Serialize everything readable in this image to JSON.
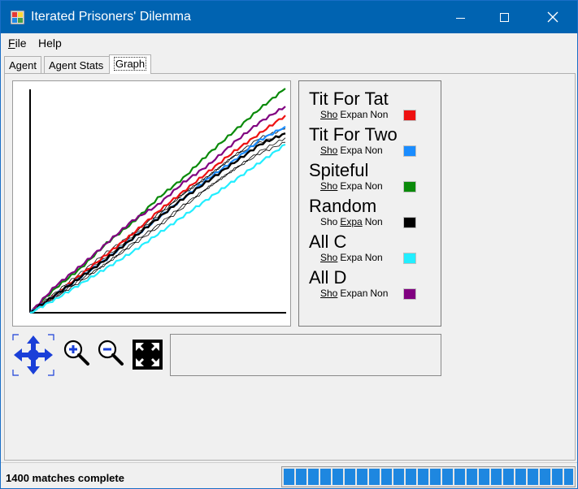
{
  "window": {
    "title": "Iterated Prisoners' Dilemma",
    "controls": {
      "minimize": "—",
      "maximize": "☐",
      "close": "✕"
    }
  },
  "menu": {
    "file_first": "F",
    "file_rest": "ile",
    "help": "Help"
  },
  "tabs": [
    {
      "label": "Agent"
    },
    {
      "label": "Agent Stats"
    },
    {
      "label": "Graph",
      "selected": true
    }
  ],
  "legend": [
    {
      "name": "Tit For Tat",
      "show": "Sho",
      "expand": "Expan",
      "none": "Non",
      "color": "#ee1111"
    },
    {
      "name": "Tit For Two",
      "show": "Sho",
      "expand": "Expa",
      "none": "Non",
      "color": "#1a8cff"
    },
    {
      "name": "Spiteful",
      "show": "Sho",
      "expand": "Expa",
      "none": "Non",
      "color": "#0a8a0a"
    },
    {
      "name": "Random",
      "show": "Sho",
      "expand": "Expa",
      "none": "Non",
      "color": "#000000"
    },
    {
      "name": "All C",
      "show": "Sho",
      "expand": "Expa",
      "none": "Non",
      "color": "#22eeff"
    },
    {
      "name": "All D",
      "show": "Sho",
      "expand": "Expan",
      "none": "Non",
      "color": "#800080"
    }
  ],
  "toolbar": {
    "pan_icon": "pan-arrows-icon",
    "zoom_in_icon": "zoom-in-icon",
    "zoom_out_icon": "zoom-out-icon",
    "fit_icon": "fit-to-view-icon"
  },
  "status": {
    "text": "1400 matches complete",
    "progress_fraction": 1.0
  },
  "chart_data": {
    "type": "line",
    "title": "",
    "xlabel": "",
    "ylabel": "",
    "grid": false,
    "legend_placement": "right",
    "x": [
      0,
      0.1,
      0.2,
      0.3,
      0.4,
      0.5,
      0.6,
      0.7,
      0.8,
      0.9,
      1.0
    ],
    "series": [
      {
        "name": "Spiteful",
        "color": "#0a8a0a",
        "values": [
          0,
          0.11,
          0.2,
          0.31,
          0.4,
          0.51,
          0.6,
          0.71,
          0.81,
          0.91,
          1.0
        ]
      },
      {
        "name": "All D",
        "color": "#800080",
        "values": [
          0,
          0.12,
          0.21,
          0.31,
          0.41,
          0.48,
          0.58,
          0.66,
          0.76,
          0.85,
          0.92
        ]
      },
      {
        "name": "Tit For Tat",
        "color": "#ee1111",
        "values": [
          0,
          0.08,
          0.17,
          0.26,
          0.35,
          0.45,
          0.54,
          0.63,
          0.72,
          0.8,
          0.88
        ]
      },
      {
        "name": "Tit For Two",
        "color": "#1a8cff",
        "values": [
          0,
          0.08,
          0.16,
          0.24,
          0.33,
          0.42,
          0.51,
          0.6,
          0.68,
          0.77,
          0.83
        ]
      },
      {
        "name": "Random",
        "color": "#000000",
        "values": [
          0,
          0.08,
          0.16,
          0.24,
          0.33,
          0.42,
          0.51,
          0.59,
          0.67,
          0.75,
          0.8
        ]
      },
      {
        "name": "All C",
        "color": "#22eeff",
        "values": [
          0,
          0.06,
          0.13,
          0.2,
          0.27,
          0.35,
          0.43,
          0.51,
          0.59,
          0.67,
          0.75
        ]
      }
    ],
    "extra_thin_series": [
      {
        "values": [
          0,
          0.09,
          0.18,
          0.27,
          0.35,
          0.44,
          0.53,
          0.61,
          0.7,
          0.78,
          0.82
        ]
      },
      {
        "values": [
          0,
          0.07,
          0.15,
          0.22,
          0.31,
          0.39,
          0.48,
          0.56,
          0.64,
          0.72,
          0.78
        ]
      },
      {
        "values": [
          0,
          0.08,
          0.17,
          0.25,
          0.34,
          0.43,
          0.53,
          0.61,
          0.7,
          0.76,
          0.8
        ]
      },
      {
        "values": [
          0,
          0.07,
          0.14,
          0.22,
          0.3,
          0.38,
          0.47,
          0.56,
          0.64,
          0.71,
          0.76
        ]
      }
    ]
  }
}
